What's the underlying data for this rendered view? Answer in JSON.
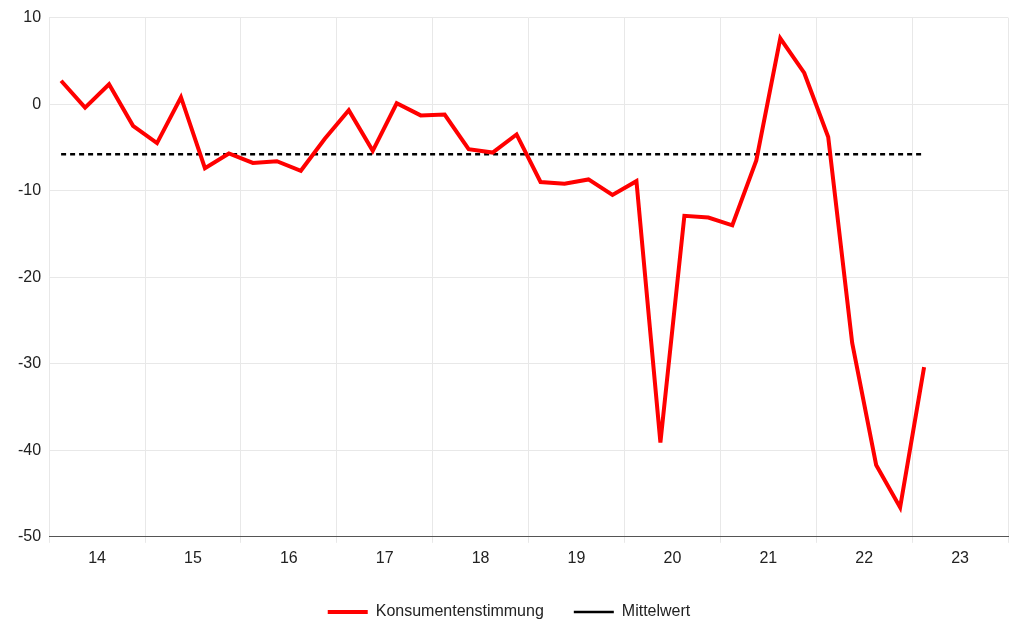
{
  "chart_data": {
    "type": "line",
    "x": [
      14.125,
      14.375,
      14.625,
      14.875,
      15.125,
      15.375,
      15.625,
      15.875,
      16.125,
      16.375,
      16.625,
      16.875,
      17.125,
      17.375,
      17.625,
      17.875,
      18.125,
      18.375,
      18.625,
      18.875,
      19.125,
      19.375,
      19.625,
      19.875,
      20.125,
      20.375,
      20.625,
      20.875,
      21.125,
      21.375,
      21.625,
      21.875,
      22.125,
      22.375,
      22.625,
      22.875,
      23.125
    ],
    "xlim": [
      14,
      24
    ],
    "xticks": [
      {
        "value": 14.5,
        "label": "14"
      },
      {
        "value": 15.5,
        "label": "15"
      },
      {
        "value": 16.5,
        "label": "16"
      },
      {
        "value": 17.5,
        "label": "17"
      },
      {
        "value": 18.5,
        "label": "18"
      },
      {
        "value": 19.5,
        "label": "19"
      },
      {
        "value": 20.5,
        "label": "20"
      },
      {
        "value": 21.5,
        "label": "21"
      },
      {
        "value": 22.5,
        "label": "22"
      },
      {
        "value": 23.5,
        "label": "23"
      }
    ],
    "ylim": [
      -50,
      10
    ],
    "yticks": [
      -50,
      -40,
      -30,
      -20,
      -10,
      0,
      10
    ],
    "grid": true,
    "legend": "bottom",
    "series": [
      {
        "name": "Konsumentenstimmung",
        "color": "#ff0000",
        "line_style": "solid",
        "values": [
          2.7,
          -0.4,
          2.3,
          -2.5,
          -4.5,
          0.8,
          -7.4,
          -5.7,
          -6.8,
          -6.6,
          -7.7,
          -4.0,
          -0.7,
          -5.4,
          0.1,
          -1.3,
          -1.2,
          -5.2,
          -5.6,
          -3.5,
          -9.0,
          -9.2,
          -8.7,
          -10.5,
          -8.9,
          -39.1,
          -12.9,
          -13.1,
          -14.0,
          -6.5,
          7.6,
          3.6,
          -3.8,
          -27.6,
          -41.7,
          -46.6,
          -30.4
        ]
      },
      {
        "name": "Mittelwert",
        "color": "#000000",
        "line_style": "dashed",
        "values": [
          -5.8,
          -5.8,
          -5.8,
          -5.8,
          -5.8,
          -5.8,
          -5.8,
          -5.8,
          -5.8,
          -5.8,
          -5.8,
          -5.8,
          -5.8,
          -5.8,
          -5.8,
          -5.8,
          -5.8,
          -5.8,
          -5.8,
          -5.8,
          -5.8,
          -5.8,
          -5.8,
          -5.8,
          -5.8,
          -5.8,
          -5.8,
          -5.8,
          -5.8,
          -5.8,
          -5.8,
          -5.8,
          -5.8,
          -5.8,
          -5.8,
          -5.8,
          -5.8
        ]
      }
    ]
  }
}
